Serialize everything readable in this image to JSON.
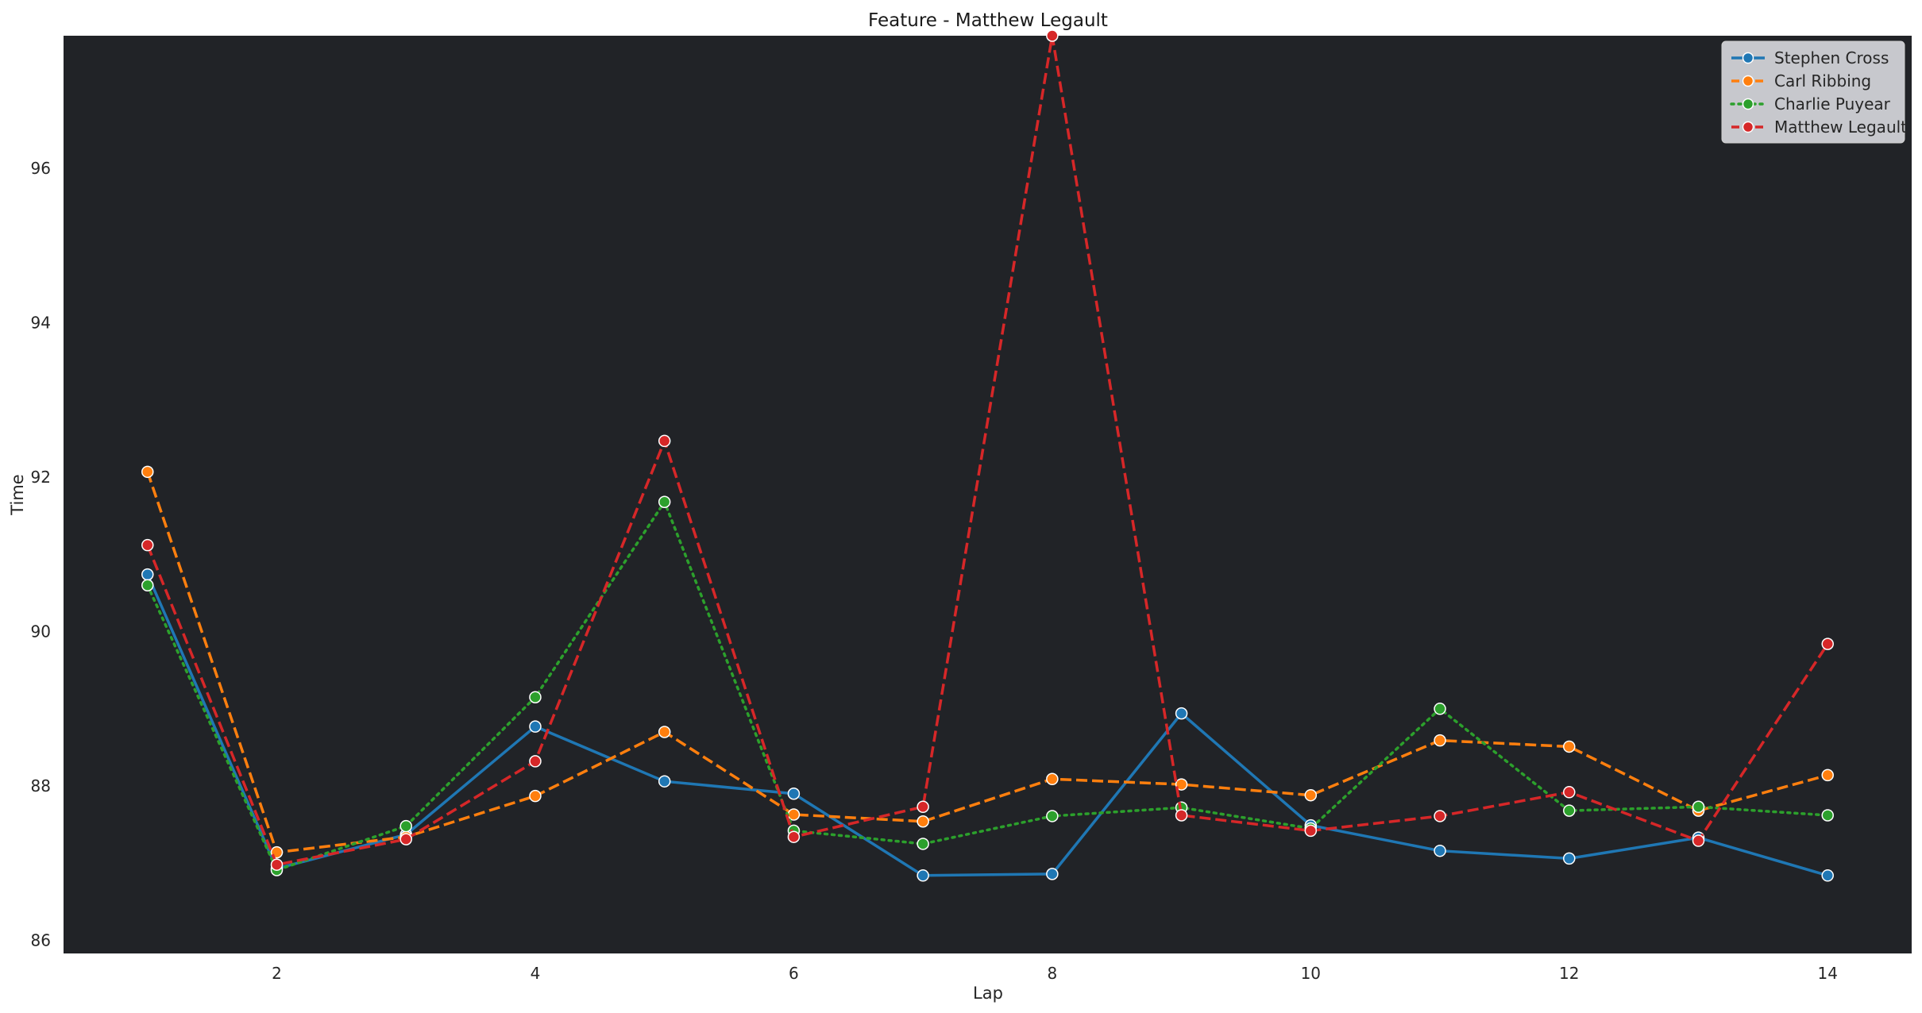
{
  "chart_data": {
    "type": "line",
    "title": "Feature - Matthew Legault",
    "xlabel": "Lap",
    "ylabel": "Time",
    "x": [
      1,
      2,
      3,
      4,
      5,
      6,
      7,
      8,
      9,
      10,
      11,
      12,
      13,
      14
    ],
    "xticks": [
      2,
      4,
      6,
      8,
      10,
      12,
      14
    ],
    "yticks": [
      86,
      88,
      90,
      92,
      94,
      96
    ],
    "xlim": [
      0.35,
      14.65
    ],
    "ylim": [
      85.83,
      97.72
    ],
    "grid": false,
    "legend_position": "top-right",
    "plot_background": "#212327",
    "series": [
      {
        "name": "Stephen Cross",
        "color": "#1f77b4",
        "dash": "solid",
        "values": [
          90.74,
          86.93,
          87.37,
          88.77,
          88.06,
          87.9,
          86.84,
          86.86,
          88.94,
          87.49,
          87.16,
          87.06,
          87.33,
          86.84
        ]
      },
      {
        "name": "Carl Ribbing",
        "color": "#ff7f0e",
        "dash": "dashed",
        "values": [
          92.07,
          87.14,
          87.34,
          87.87,
          88.7,
          87.63,
          87.54,
          88.09,
          88.02,
          87.88,
          88.59,
          88.51,
          87.68,
          88.14
        ]
      },
      {
        "name": "Charlie Puyear",
        "color": "#2ca02c",
        "dash": "dotted",
        "values": [
          90.6,
          86.91,
          87.48,
          89.15,
          91.68,
          87.42,
          87.25,
          87.61,
          87.72,
          87.45,
          89.0,
          87.68,
          87.73,
          87.62
        ]
      },
      {
        "name": "Matthew Legault",
        "color": "#d62728",
        "dash": "dashed",
        "values": [
          91.12,
          86.98,
          87.31,
          88.32,
          92.47,
          87.34,
          87.73,
          97.72,
          87.62,
          87.42,
          87.61,
          87.92,
          87.29,
          89.84
        ]
      }
    ]
  }
}
